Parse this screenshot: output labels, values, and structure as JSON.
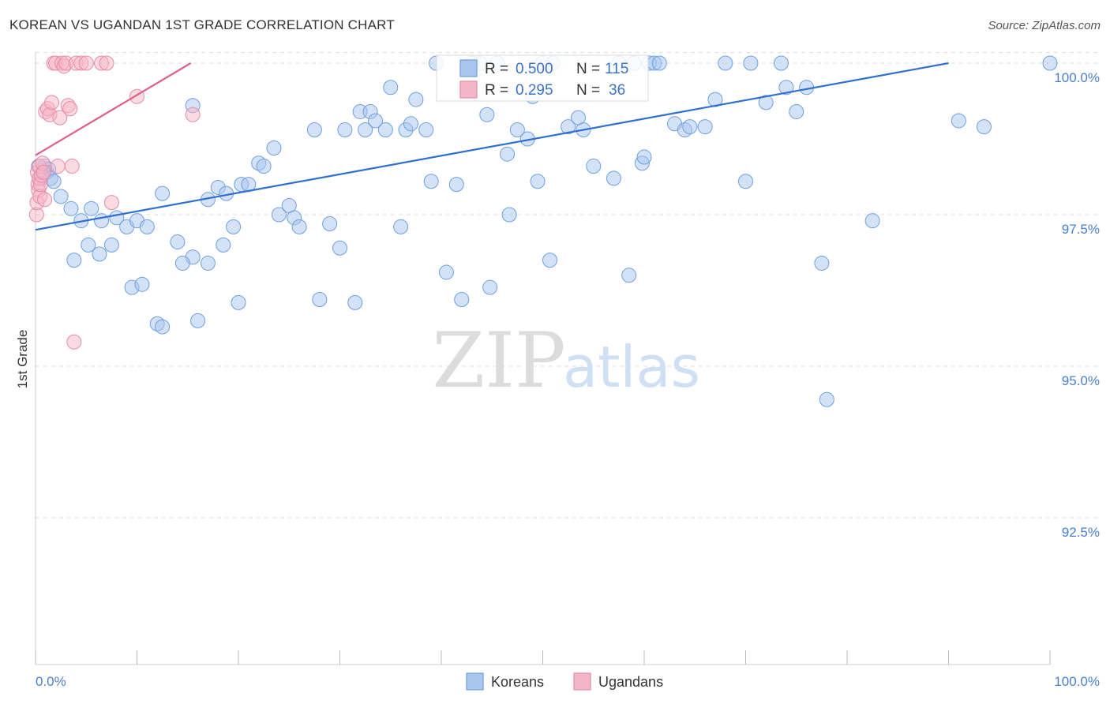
{
  "header": {
    "title": "KOREAN VS UGANDAN 1ST GRADE CORRELATION CHART",
    "source": "Source: ZipAtlas.com"
  },
  "watermark": {
    "zip": "ZIP",
    "atlas": "atlas"
  },
  "legend_box": {
    "rows": [
      {
        "r_label": "R = ",
        "r_value": "0.500",
        "n_label": "N = ",
        "n_value": "115",
        "color": "#a9c6ef"
      },
      {
        "r_label": "R = ",
        "r_value": "0.295",
        "n_label": "N = ",
        "n_value": "36",
        "color": "#f5b5c8"
      }
    ]
  },
  "bottom_legend": {
    "koreans": "Koreans",
    "ugandans": "Ugandans"
  },
  "colors": {
    "koreans_fill": "#a9c6ef",
    "koreans_stroke": "#6e9fe0",
    "koreans_line": "#2f6fd1",
    "ugandans_fill": "#f5b5c8",
    "ugandans_stroke": "#e88aa8",
    "ugandans_line": "#e0608a",
    "tick_text": "#4a7fd0",
    "grid": "#dddddd"
  },
  "chart_data": {
    "type": "scatter",
    "title": "KOREAN VS UGANDAN 1ST GRADE CORRELATION CHART",
    "xlabel": "",
    "ylabel": "1st Grade",
    "xlim": [
      0,
      100
    ],
    "ylim": [
      90.0,
      100.2
    ],
    "x_tick_labels": [
      "0.0%",
      "100.0%"
    ],
    "y_ticks": [
      92.5,
      95.0,
      97.5,
      100.0
    ],
    "y_tick_labels": [
      "92.5%",
      "95.0%",
      "97.5%",
      "100.0%"
    ],
    "grid": true,
    "series": [
      {
        "name": "Koreans",
        "R": 0.5,
        "N": 115,
        "trend": {
          "x": [
            0,
            90
          ],
          "y": [
            97.25,
            100.0
          ]
        },
        "points": [
          [
            0.3,
            98.3
          ],
          [
            0.5,
            98.1
          ],
          [
            0.7,
            98.2
          ],
          [
            0.9,
            98.3
          ],
          [
            1.1,
            98.2
          ],
          [
            1.3,
            98.25
          ],
          [
            1.5,
            98.1
          ],
          [
            1.8,
            98.05
          ],
          [
            2.5,
            97.8
          ],
          [
            3.5,
            97.6
          ],
          [
            4.5,
            97.4
          ],
          [
            5.5,
            97.6
          ],
          [
            6.5,
            97.4
          ],
          [
            8.0,
            97.45
          ],
          [
            9.0,
            97.3
          ],
          [
            10.0,
            97.4
          ],
          [
            11.0,
            97.3
          ],
          [
            12.5,
            97.85
          ],
          [
            14.0,
            97.05
          ],
          [
            15.5,
            96.8
          ],
          [
            17.0,
            96.7
          ],
          [
            18.5,
            97.0
          ],
          [
            20.0,
            96.05
          ],
          [
            3.8,
            96.75
          ],
          [
            5.2,
            97.0
          ],
          [
            6.3,
            96.85
          ],
          [
            7.5,
            97.0
          ],
          [
            9.5,
            96.3
          ],
          [
            10.5,
            96.35
          ],
          [
            12.0,
            95.7
          ],
          [
            12.5,
            95.65
          ],
          [
            14.5,
            96.7
          ],
          [
            16.0,
            95.75
          ],
          [
            15.5,
            99.3
          ],
          [
            17.0,
            97.75
          ],
          [
            18.0,
            97.95
          ],
          [
            18.8,
            97.85
          ],
          [
            19.5,
            97.3
          ],
          [
            20.3,
            98.0
          ],
          [
            21.0,
            98.0
          ],
          [
            22.0,
            98.35
          ],
          [
            22.5,
            98.3
          ],
          [
            23.5,
            98.6
          ],
          [
            24.0,
            97.5
          ],
          [
            25.0,
            97.65
          ],
          [
            25.5,
            97.45
          ],
          [
            26.0,
            97.3
          ],
          [
            27.5,
            98.9
          ],
          [
            28.0,
            96.1
          ],
          [
            29.0,
            97.35
          ],
          [
            30.0,
            96.95
          ],
          [
            30.5,
            98.9
          ],
          [
            31.5,
            96.05
          ],
          [
            32.0,
            99.2
          ],
          [
            32.5,
            98.9
          ],
          [
            33.0,
            99.2
          ],
          [
            33.5,
            99.05
          ],
          [
            34.5,
            98.9
          ],
          [
            35.0,
            99.6
          ],
          [
            36.0,
            97.3
          ],
          [
            36.5,
            98.9
          ],
          [
            37.0,
            99.0
          ],
          [
            37.5,
            99.4
          ],
          [
            38.5,
            98.9
          ],
          [
            39.0,
            98.05
          ],
          [
            39.5,
            100.0
          ],
          [
            40.5,
            96.55
          ],
          [
            41.5,
            98.0
          ],
          [
            42.0,
            96.1
          ],
          [
            42.5,
            99.55
          ],
          [
            43.0,
            100.0
          ],
          [
            43.8,
            100.0
          ],
          [
            44.5,
            99.15
          ],
          [
            44.8,
            96.3
          ],
          [
            45.5,
            100.0
          ],
          [
            46.5,
            98.5
          ],
          [
            46.7,
            97.5
          ],
          [
            47.5,
            98.9
          ],
          [
            48.5,
            98.75
          ],
          [
            49.0,
            99.45
          ],
          [
            49.5,
            98.05
          ],
          [
            50.0,
            100.0
          ],
          [
            50.7,
            96.75
          ],
          [
            51.0,
            100.0
          ],
          [
            52.5,
            98.95
          ],
          [
            53.5,
            99.1
          ],
          [
            54.0,
            98.9
          ],
          [
            55.0,
            98.3
          ],
          [
            57.0,
            98.1
          ],
          [
            57.5,
            100.0
          ],
          [
            58.5,
            96.5
          ],
          [
            59.0,
            100.0
          ],
          [
            59.8,
            98.35
          ],
          [
            60.0,
            98.45
          ],
          [
            60.5,
            100.0
          ],
          [
            61.0,
            100.0
          ],
          [
            61.5,
            100.0
          ],
          [
            63.0,
            99.0
          ],
          [
            64.0,
            98.9
          ],
          [
            64.5,
            98.95
          ],
          [
            66.0,
            98.95
          ],
          [
            67.0,
            99.4
          ],
          [
            68.0,
            100.0
          ],
          [
            70.0,
            98.05
          ],
          [
            70.5,
            100.0
          ],
          [
            72.0,
            99.35
          ],
          [
            73.5,
            100.0
          ],
          [
            74.0,
            99.6
          ],
          [
            75.0,
            99.2
          ],
          [
            76.0,
            99.6
          ],
          [
            77.5,
            96.7
          ],
          [
            78.0,
            94.45
          ],
          [
            82.5,
            97.4
          ],
          [
            91.0,
            99.05
          ],
          [
            93.5,
            98.95
          ],
          [
            100.0,
            100.0
          ]
        ]
      },
      {
        "name": "Ugandans",
        "R": 0.295,
        "N": 36,
        "trend": {
          "x": [
            0,
            15.3
          ],
          "y": [
            98.48,
            100.0
          ]
        },
        "points": [
          [
            0.1,
            97.5
          ],
          [
            0.15,
            97.7
          ],
          [
            0.2,
            98.2
          ],
          [
            0.25,
            98.0
          ],
          [
            0.3,
            97.9
          ],
          [
            0.35,
            98.1
          ],
          [
            0.4,
            98.3
          ],
          [
            0.45,
            97.8
          ],
          [
            0.5,
            98.0
          ],
          [
            0.6,
            98.15
          ],
          [
            0.7,
            98.35
          ],
          [
            0.8,
            98.2
          ],
          [
            0.9,
            97.75
          ],
          [
            1.0,
            99.2
          ],
          [
            1.2,
            99.25
          ],
          [
            1.4,
            99.15
          ],
          [
            1.6,
            99.35
          ],
          [
            1.8,
            100.0
          ],
          [
            2.0,
            100.0
          ],
          [
            2.2,
            98.3
          ],
          [
            2.4,
            99.1
          ],
          [
            2.6,
            100.0
          ],
          [
            2.8,
            99.95
          ],
          [
            3.0,
            100.0
          ],
          [
            3.2,
            99.3
          ],
          [
            3.4,
            99.25
          ],
          [
            3.6,
            98.3
          ],
          [
            3.8,
            95.4
          ],
          [
            4.0,
            100.0
          ],
          [
            4.5,
            100.0
          ],
          [
            5.0,
            100.0
          ],
          [
            6.5,
            100.0
          ],
          [
            7.0,
            100.0
          ],
          [
            7.5,
            97.7
          ],
          [
            10.0,
            99.45
          ],
          [
            15.5,
            99.15
          ]
        ]
      }
    ]
  }
}
